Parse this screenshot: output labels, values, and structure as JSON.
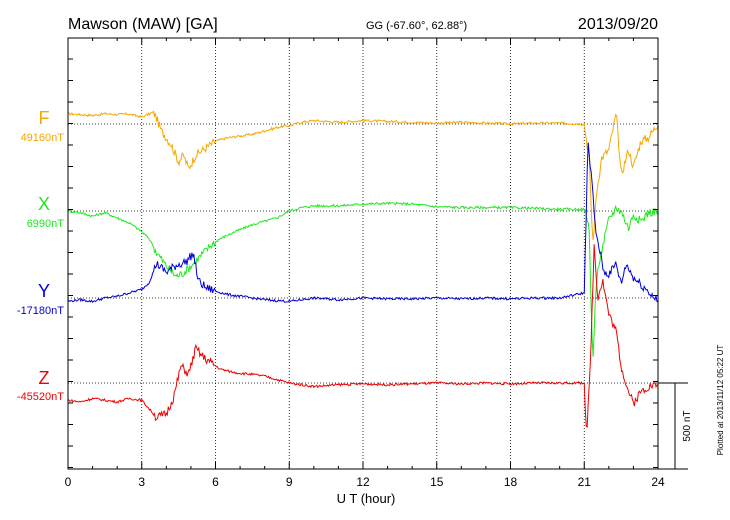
{
  "header": {
    "station": "Mawson (MAW)  [GA]",
    "coords": "GG (-67.60°,  62.88°)",
    "date": "2013/09/20"
  },
  "footer": {
    "plotted": "Plotted at 2013/11/12 05:22 UT"
  },
  "chart_data": {
    "type": "line",
    "xlabel": "U T (hour)",
    "xlim": [
      0,
      24
    ],
    "xticks": [
      "0",
      "3",
      "6",
      "9",
      "12",
      "15",
      "18",
      "21",
      "24"
    ],
    "scale_bar_label": "500 nT",
    "grid": "dotted",
    "series": [
      {
        "name": "F",
        "baseline_label": "49160nT",
        "color": "#f5a800",
        "base": 49160,
        "x": [
          0,
          0.5,
          1,
          1.5,
          2,
          2.5,
          3,
          3.5,
          3.8,
          4.2,
          4.5,
          4.7,
          4.9,
          5.2,
          5.5,
          6,
          6.5,
          7,
          7.5,
          8,
          8.5,
          9,
          9.5,
          10,
          11,
          12,
          13,
          14,
          15,
          16,
          17,
          18,
          19,
          20,
          21,
          21.2,
          21.35,
          21.5,
          21.7,
          22,
          22.3,
          22.5,
          22.8,
          23,
          23.3,
          23.6,
          24
        ],
        "y": [
          60,
          55,
          50,
          60,
          55,
          58,
          40,
          70,
          -40,
          -120,
          -220,
          -180,
          -260,
          -180,
          -150,
          -100,
          -80,
          -70,
          -60,
          -40,
          -20,
          -10,
          10,
          20,
          10,
          20,
          15,
          10,
          5,
          10,
          5,
          0,
          5,
          5,
          0,
          -200,
          -700,
          -400,
          -200,
          -150,
          60,
          -300,
          -150,
          -250,
          -100,
          -80,
          0
        ]
      },
      {
        "name": "X",
        "baseline_label": "6990nT",
        "color": "#1ee81e",
        "base": 6990,
        "x": [
          0,
          0.5,
          1,
          1.5,
          2,
          2.5,
          3,
          3.3,
          3.6,
          4,
          4.4,
          4.7,
          5,
          5.4,
          5.8,
          6.2,
          6.8,
          7.5,
          8,
          8.5,
          9,
          9.5,
          10,
          11,
          12,
          13,
          14,
          15,
          16,
          17,
          18,
          19,
          20,
          21,
          21.2,
          21.35,
          21.45,
          21.6,
          22,
          22.3,
          22.5,
          22.8,
          23,
          23.3,
          23.6,
          24
        ],
        "y": [
          0,
          -10,
          -30,
          -10,
          -40,
          -70,
          -120,
          -160,
          -240,
          -320,
          -380,
          -360,
          -320,
          -260,
          -200,
          -160,
          -120,
          -80,
          -60,
          -40,
          0,
          20,
          30,
          30,
          40,
          45,
          40,
          25,
          20,
          20,
          20,
          15,
          10,
          10,
          -100,
          -900,
          -500,
          -300,
          -50,
          20,
          0,
          -100,
          -20,
          -60,
          -10,
          0
        ]
      },
      {
        "name": "Y",
        "baseline_label": "-17180nT",
        "color": "#0000dd",
        "base": -17180,
        "x": [
          0,
          0.5,
          1,
          1.5,
          2,
          2.5,
          3,
          3.3,
          3.6,
          4,
          4.4,
          4.8,
          5.1,
          5.3,
          5.6,
          6,
          6.5,
          7,
          7.5,
          8,
          8.5,
          9,
          9.5,
          10,
          11,
          12,
          13,
          14,
          15,
          16,
          17,
          18,
          19,
          20,
          21,
          21.15,
          21.3,
          21.45,
          21.6,
          21.8,
          22,
          22.3,
          22.5,
          22.7,
          23,
          23.3,
          23.6,
          24
        ],
        "y": [
          -20,
          -10,
          -20,
          0,
          10,
          30,
          50,
          90,
          200,
          150,
          190,
          210,
          260,
          100,
          60,
          40,
          20,
          10,
          0,
          -10,
          -15,
          -20,
          -10,
          0,
          -10,
          0,
          -5,
          -5,
          0,
          -5,
          0,
          -5,
          0,
          0,
          30,
          900,
          700,
          400,
          300,
          150,
          140,
          200,
          80,
          200,
          120,
          80,
          40,
          -20
        ]
      },
      {
        "name": "Z",
        "baseline_label": "-45520nT",
        "color": "#ee0000",
        "base": -45520,
        "x": [
          0,
          0.5,
          1,
          1.5,
          2,
          2.5,
          3,
          3.3,
          3.6,
          4,
          4.3,
          4.6,
          4.9,
          5.2,
          5.5,
          5.8,
          6.2,
          6.8,
          7.5,
          8,
          8.5,
          9,
          9.5,
          10,
          11,
          12,
          13,
          14,
          15,
          16,
          17,
          18,
          19,
          20,
          21,
          21.1,
          21.25,
          21.4,
          21.55,
          21.75,
          22,
          22.3,
          22.5,
          22.8,
          23,
          23.3,
          23.6,
          24
        ],
        "y": [
          -100,
          -110,
          -90,
          -100,
          -110,
          -90,
          -100,
          -150,
          -200,
          -180,
          -80,
          100,
          50,
          200,
          150,
          120,
          80,
          60,
          50,
          40,
          20,
          0,
          -10,
          -20,
          -10,
          -5,
          -10,
          -5,
          0,
          -5,
          0,
          -5,
          0,
          0,
          0,
          -300,
          100,
          800,
          500,
          600,
          400,
          300,
          100,
          -50,
          -120,
          -50,
          -20,
          -10
        ]
      }
    ]
  }
}
